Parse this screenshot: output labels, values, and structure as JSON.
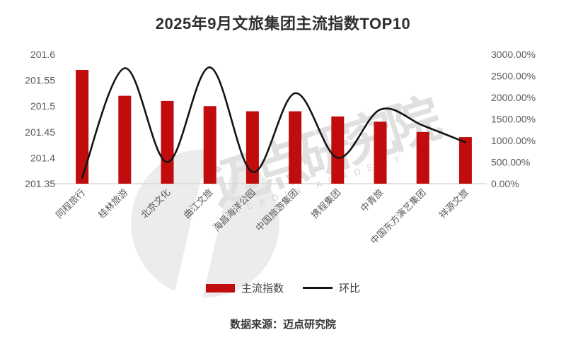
{
  "title": "2025年9月文旅集团主流指数TOP10",
  "legend": {
    "bar": {
      "label": "主流指数",
      "color": "#c00c0c"
    },
    "line": {
      "label": "环比",
      "color": "#141414"
    }
  },
  "footer": {
    "source_label": "数据来源：迈点研究院"
  },
  "watermark": {
    "text": "迈点研究院",
    "subtext": "MEADIN ACADEMY",
    "text_color": "#e0e0e0",
    "subtext_color": "#d6d6d6",
    "circle_color": "#ececec"
  },
  "chart_data": {
    "type": "bar",
    "title": "2025年9月文旅集团主流指数TOP10",
    "categories": [
      "同程旅行",
      "桂林旅游",
      "北京文化",
      "曲江文旅",
      "海昌海洋公园",
      "中国旅游集团",
      "携程集团",
      "中青旅",
      "中国东方演艺集团",
      "祥源文旅"
    ],
    "series": [
      {
        "name": "主流指数",
        "type": "bar",
        "axis": "left",
        "color": "#c00c0c",
        "values": [
          201.57,
          201.52,
          201.51,
          201.5,
          201.49,
          201.49,
          201.48,
          201.47,
          201.45,
          201.44
        ]
      },
      {
        "name": "环比",
        "type": "line",
        "axis": "right",
        "color": "#141414",
        "unit": "%",
        "values": [
          140,
          2680,
          500,
          2700,
          270,
          2100,
          600,
          1720,
          1350,
          960
        ]
      }
    ],
    "left_axis": {
      "min": 201.35,
      "max": 201.6,
      "step": 0.05,
      "tick_labels": [
        "201.6",
        "201.55",
        "201.5",
        "201.45",
        "201.4",
        "201.35"
      ]
    },
    "right_axis": {
      "min": 0,
      "max": 3000,
      "step": 500,
      "tick_labels": [
        "3000.00%",
        "2500.00%",
        "2000.00%",
        "1500.00%",
        "1000.00%",
        "500.00%",
        "0.00%"
      ]
    },
    "grid": false,
    "legend_position": "bottom",
    "axis_text_color": "#595959",
    "axis_line_color": "#d9d9d9"
  }
}
